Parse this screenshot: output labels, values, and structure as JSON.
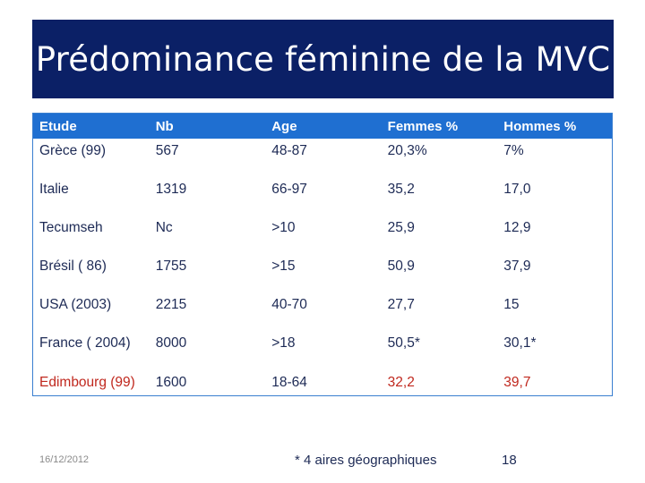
{
  "title": "Prédominance féminine de la MVC",
  "table": {
    "headers": [
      "Etude",
      "Nb",
      "Age",
      "Femmes %",
      "Hommes %"
    ],
    "rows": [
      [
        "Grèce (99)",
        "567",
        "48-87",
        "20,3%",
        "7%"
      ],
      [
        "Italie",
        "1319",
        "66-97",
        "35,2",
        "17,0"
      ],
      [
        "Tecumseh",
        "Nc",
        ">10",
        "25,9",
        "12,9"
      ],
      [
        "Brésil ( 86)",
        "1755",
        ">15",
        "50,9",
        "37,9"
      ],
      [
        "USA (2003)",
        "2215",
        "40-70",
        "27,7",
        "15"
      ],
      [
        "France ( 2004)",
        "8000",
        ">18",
        "50,5*",
        "30,1*"
      ],
      [
        "Edimbourg (99)",
        "1600",
        "18-64",
        "32,2",
        "39,7"
      ]
    ]
  },
  "footer": {
    "date": "16/12/2012",
    "note": "* 4 aires géographiques",
    "page": "18"
  },
  "colors": {
    "title_bg": "#0b2066",
    "header_bg": "#1f6fd1",
    "highlight": "#c0281e"
  }
}
